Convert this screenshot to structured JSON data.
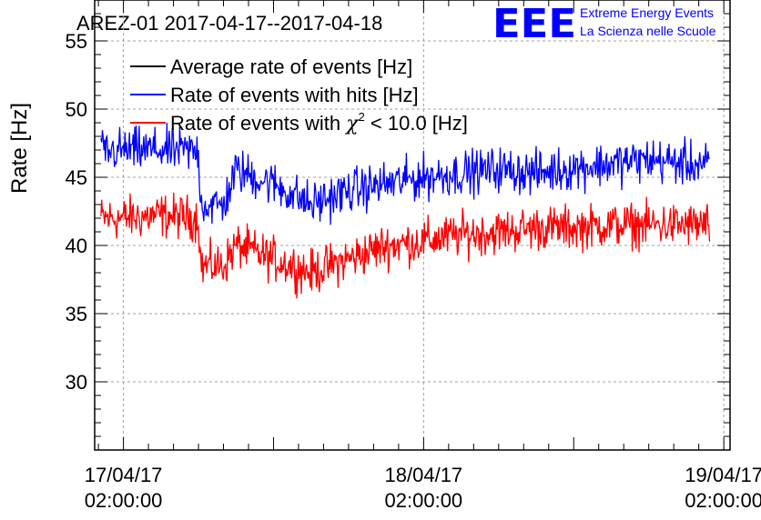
{
  "chart_data": {
    "type": "line",
    "title": "AREZ-01 2017-04-17--2017-04-18",
    "xlabel": "",
    "ylabel": "Rate [Hz]",
    "ylim": [
      25,
      58
    ],
    "yticks": [
      30,
      35,
      40,
      45,
      50,
      55
    ],
    "xlim_hours": [
      -2.3,
      48.5
    ],
    "xticks": [
      {
        "hour": 0,
        "label_date": "17/04/17",
        "label_time": "02:00:00"
      },
      {
        "hour": 24,
        "label_date": "18/04/17",
        "label_time": "02:00:00"
      },
      {
        "hour": 48,
        "label_date": "19/04/17",
        "label_time": "02:00:00"
      }
    ],
    "grid": true,
    "legend_position": "top-left",
    "series": [
      {
        "name": "Average rate of events [Hz]",
        "color": "#000000",
        "hours": [],
        "values": []
      },
      {
        "name": "Rate of events with hits [Hz]",
        "color": "#0000ff",
        "hours": [
          -1.8,
          0,
          3,
          6,
          6.2,
          8,
          9,
          12,
          15,
          18,
          21,
          24,
          27,
          30,
          33,
          36,
          39,
          42,
          45,
          46.9
        ],
        "values": [
          46.8,
          47,
          47,
          46.9,
          43,
          42.9,
          45.5,
          44.5,
          43,
          44,
          44.5,
          45,
          45.3,
          45.6,
          45.3,
          45.7,
          46,
          46.3,
          46,
          46
        ]
      },
      {
        "name": "Rate of events with χ² < 10.0 [Hz]",
        "color": "#ff0000",
        "hours": [
          -1.8,
          0,
          3,
          6,
          6.2,
          8,
          9,
          12,
          15,
          18,
          21,
          24,
          27,
          30,
          33,
          36,
          39,
          42,
          45,
          46.9
        ],
        "values": [
          42,
          42,
          42.2,
          42,
          38.5,
          38.5,
          40,
          39,
          38,
          39,
          40,
          40.3,
          40.8,
          41,
          41.3,
          41.3,
          41.5,
          41.5,
          41.5,
          41.5
        ]
      }
    ],
    "noise_amplitude": 1.6
  },
  "logo": {
    "big": "EEE",
    "line1": "Extreme Energy Events",
    "line2": "La Scienza nelle Scuole"
  },
  "legend_chi": {
    "prefix": "Rate of events with ",
    "chi": "χ",
    "sup": "2",
    "suffix": " < 10.0 [Hz]"
  },
  "colors": {
    "grid": "#a0a0a0",
    "axis": "#000000",
    "logo": "#0000ff"
  }
}
